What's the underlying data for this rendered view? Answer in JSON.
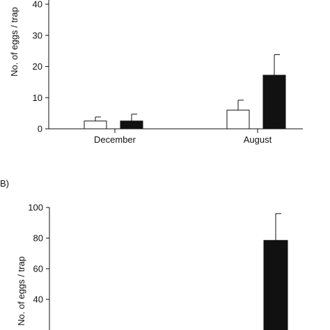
{
  "chart_data": [
    {
      "type": "bar",
      "panel_label": "",
      "ylabel": "No. of eggs / trap",
      "xlabel": "",
      "categories": [
        "December",
        "August"
      ],
      "yticks": [
        0,
        10,
        20,
        30,
        40
      ],
      "ylim": [
        0,
        40
      ],
      "series": [
        {
          "fill": "#ffffff",
          "values": [
            2.5,
            6.0
          ],
          "errors": [
            1.3,
            3.2
          ]
        },
        {
          "fill": "#111111",
          "values": [
            2.5,
            17.2
          ],
          "errors": [
            2.2,
            6.6
          ]
        }
      ]
    },
    {
      "type": "bar",
      "panel_label": "B)",
      "ylabel": "No. of eggs / trap",
      "xlabel": "",
      "categories": [
        "",
        ""
      ],
      "yticks": [
        40,
        60,
        80,
        100
      ],
      "ylim": [
        20,
        100
      ],
      "series": [
        {
          "fill": "#ffffff",
          "values": [
            null,
            null
          ],
          "errors": [
            null,
            null
          ]
        },
        {
          "fill": "#111111",
          "values": [
            null,
            78.5
          ],
          "errors": [
            null,
            17.5
          ]
        }
      ]
    }
  ]
}
